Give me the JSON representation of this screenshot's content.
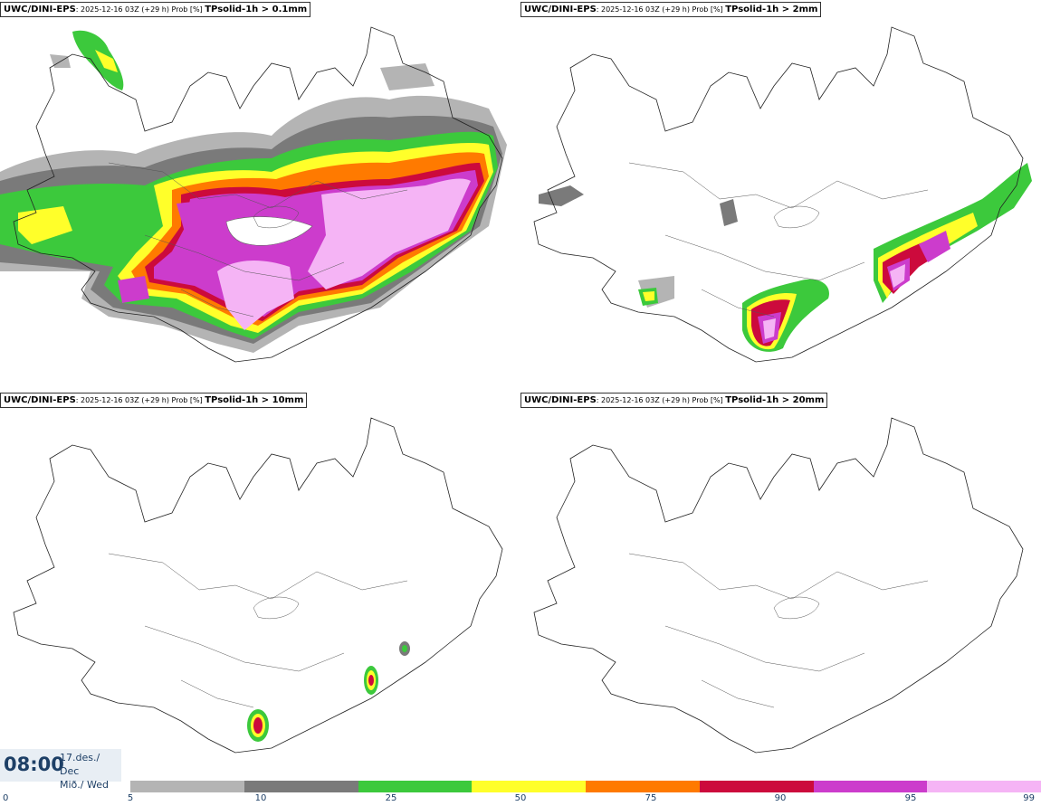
{
  "panels": [
    {
      "model": "UWC/DINI-EPS",
      "meta": ": 2025-12-16 03Z (+29 h) Prob [%] ",
      "param": "TPsolid-1h > 0.1mm"
    },
    {
      "model": "UWC/DINI-EPS",
      "meta": ": 2025-12-16 03Z (+29 h) Prob [%] ",
      "param": "TPsolid-1h > 2mm"
    },
    {
      "model": "UWC/DINI-EPS",
      "meta": ": 2025-12-16 03Z (+29 h) Prob [%] ",
      "param": "TPsolid-1h > 10mm"
    },
    {
      "model": "UWC/DINI-EPS",
      "meta": ": 2025-12-16 03Z (+29 h) Prob [%] ",
      "param": "TPsolid-1h > 20mm"
    }
  ],
  "time": {
    "main": "08:00",
    "date_line1": "17.des./ Dec",
    "date_line2": "Mið./ Wed"
  },
  "colorbar": {
    "ticks": [
      "0",
      "5",
      "10",
      "25",
      "50",
      "75",
      "90",
      "95",
      "99"
    ],
    "colors": [
      "#b4b4b4",
      "#7a7a7a",
      "#3cc93c",
      "#ffff2a",
      "#ff7a00",
      "#cc0a3c",
      "#cc3ccc",
      "#f5b4f5"
    ]
  }
}
